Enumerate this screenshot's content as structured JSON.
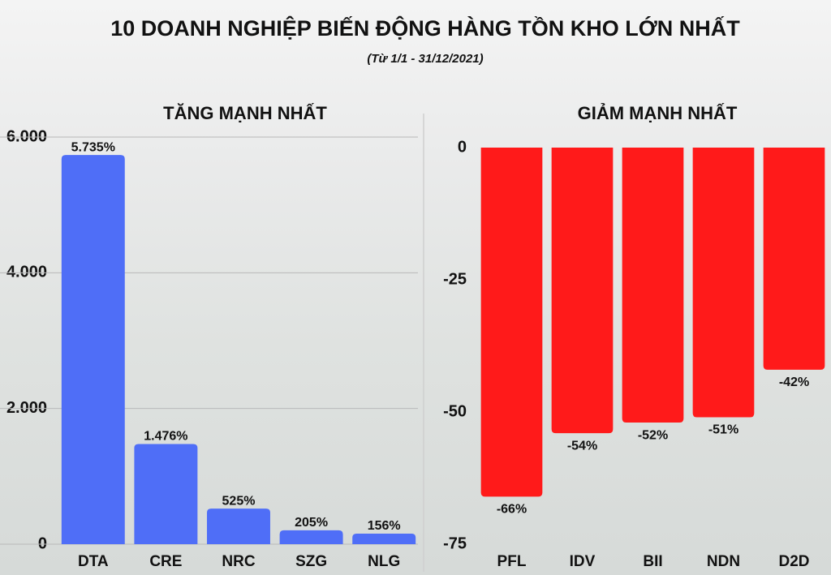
{
  "title": "10 DOANH NGHIỆP BIẾN ĐỘNG HÀNG TỒN KHO LỚN NHẤT",
  "subtitle": "(Từ 1/1 - 31/12/2021)",
  "chart_data": [
    {
      "type": "bar",
      "title": "TĂNG MẠNH NHẤT",
      "categories": [
        "DTA",
        "CRE",
        "NRC",
        "SZG",
        "NLG"
      ],
      "values": [
        5735,
        1476,
        525,
        205,
        156
      ],
      "value_labels": [
        "5.735%",
        "1.476%",
        "525%",
        "205%",
        "156%"
      ],
      "color": "#4f6ef7",
      "ylim": [
        0,
        6000
      ],
      "yticks": [
        0,
        {
          "value": 2000,
          "label": "2.000"
        },
        {
          "value": 4000,
          "label": "4.000"
        },
        {
          "value": 6000,
          "label": "6.000"
        }
      ],
      "grid": true
    },
    {
      "type": "bar",
      "title": "GIẢM MẠNH NHẤT",
      "categories": [
        "PFL",
        "IDV",
        "BII",
        "NDN",
        "D2D"
      ],
      "values": [
        -66,
        -54,
        -52,
        -51,
        -42
      ],
      "value_labels": [
        "-66%",
        "-54%",
        "-52%",
        "-51%",
        "-42%"
      ],
      "color": "#ff1a1a",
      "ylim": [
        -75,
        0
      ],
      "yticks": [
        -75,
        -50,
        -25,
        0
      ],
      "grid": false
    }
  ]
}
